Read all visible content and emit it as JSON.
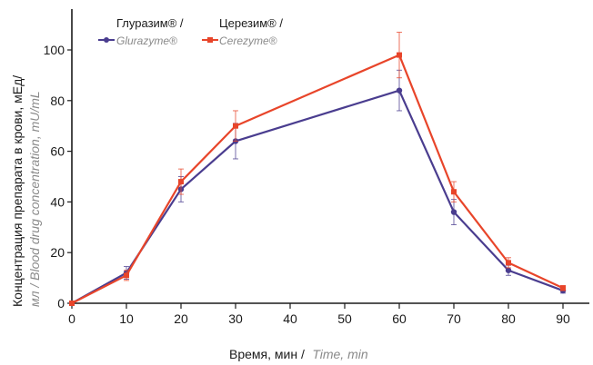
{
  "chart_data": {
    "type": "line",
    "x": [
      0,
      10,
      20,
      30,
      60,
      70,
      80,
      90
    ],
    "xticks": [
      0,
      10,
      20,
      30,
      40,
      50,
      60,
      70,
      80,
      90
    ],
    "xlim": [
      0,
      100
    ],
    "yticks": [
      0,
      20,
      40,
      60,
      80,
      100
    ],
    "ylim": [
      0,
      115
    ],
    "xlabel_main": "Время, мин /",
    "xlabel_italic": "Time, min",
    "ylabel_main": "Концентрация препарата в крови, мЕд/",
    "ylabel_italic": "мл / Blood drug concentration, mU/mL",
    "grid": false,
    "legend_position": "top-left",
    "series": [
      {
        "name": "Глуразим® /",
        "name_italic": "Glurazyme®",
        "color": "#4a3d8f",
        "values": [
          0,
          12,
          45,
          64,
          84,
          36,
          13,
          5
        ],
        "err": [
          0,
          2.5,
          5,
          7,
          8,
          5,
          2,
          1
        ]
      },
      {
        "name": "Церезим® /",
        "name_italic": "Cerezyme®",
        "color": "#e8452a",
        "values": [
          0,
          11,
          48,
          70,
          98,
          44,
          16,
          6
        ],
        "err": [
          0,
          2,
          5,
          6,
          9,
          4,
          2,
          1
        ]
      }
    ]
  }
}
